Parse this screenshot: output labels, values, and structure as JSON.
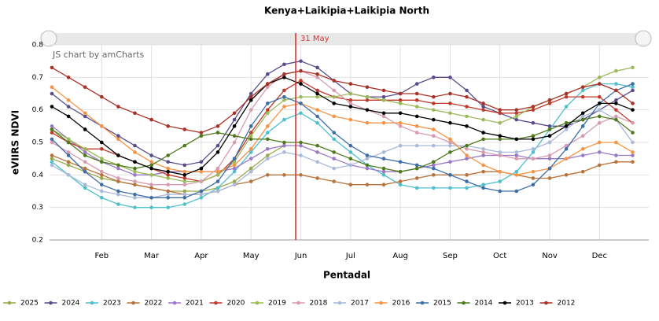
{
  "chart_data": {
    "type": "line",
    "title": "Kenya+Laikipia+Laikipia North",
    "credit": "JS chart by amCharts",
    "cursor_label": "31 May",
    "x_label": "Pentadal",
    "y_label": "eVIIRS NDVI",
    "categories": [
      null,
      null,
      null,
      "Feb",
      null,
      null,
      "Mar",
      null,
      null,
      "Apr",
      null,
      null,
      "May",
      null,
      null,
      "Jun",
      null,
      null,
      "Jul",
      null,
      null,
      "Aug",
      null,
      null,
      "Sep",
      null,
      null,
      "Oct",
      null,
      null,
      "Nov",
      null,
      null,
      "Dec",
      null,
      null
    ],
    "ylim": [
      0.2,
      0.8
    ],
    "yticks": [
      0.2,
      0.3,
      0.4,
      0.5,
      0.6,
      0.7,
      0.8
    ],
    "grid": true,
    "series": [
      {
        "name": "2025",
        "color": "#9aa84a",
        "values": [
          0.45,
          0.43,
          0.41,
          0.39,
          0.38,
          0.37,
          0.36,
          0.35,
          0.35,
          0.35,
          0.36,
          0.38,
          0.42,
          0.46,
          0.49,
          null,
          null,
          null,
          null,
          null,
          null,
          null,
          null,
          null,
          null,
          null,
          null,
          null,
          null,
          null,
          null,
          null,
          null,
          null,
          null,
          null
        ]
      },
      {
        "name": "2024",
        "color": "#5b4a8b",
        "values": [
          0.65,
          0.61,
          0.58,
          0.55,
          0.52,
          0.49,
          0.46,
          0.44,
          0.43,
          0.44,
          0.49,
          0.57,
          0.65,
          0.71,
          0.74,
          0.75,
          0.73,
          0.69,
          0.65,
          0.64,
          0.64,
          0.65,
          0.68,
          0.7,
          0.7,
          0.66,
          0.61,
          0.59,
          0.57,
          0.56,
          0.55,
          0.55,
          0.57,
          0.6,
          0.63,
          0.66
        ]
      },
      {
        "name": "2023",
        "color": "#4ec0cc",
        "values": [
          0.44,
          0.4,
          0.36,
          0.33,
          0.31,
          0.3,
          0.3,
          0.3,
          0.31,
          0.33,
          0.36,
          0.41,
          0.47,
          0.53,
          0.57,
          0.59,
          0.56,
          0.51,
          0.47,
          0.43,
          0.4,
          0.37,
          0.36,
          0.36,
          0.36,
          0.36,
          0.37,
          0.38,
          0.41,
          0.47,
          0.54,
          0.61,
          0.66,
          0.68,
          0.68,
          0.67
        ]
      },
      {
        "name": "2022",
        "color": "#b8733a",
        "values": [
          0.46,
          0.44,
          0.42,
          0.4,
          0.38,
          0.37,
          0.36,
          0.35,
          0.34,
          0.34,
          0.35,
          0.37,
          0.38,
          0.4,
          0.4,
          0.4,
          0.39,
          0.38,
          0.37,
          0.37,
          0.37,
          0.38,
          0.39,
          0.4,
          0.4,
          0.4,
          0.41,
          0.41,
          0.4,
          0.39,
          0.39,
          0.4,
          0.41,
          0.43,
          0.44,
          0.44
        ]
      },
      {
        "name": "2021",
        "color": "#9b79c6",
        "values": [
          0.55,
          0.51,
          0.47,
          0.44,
          0.42,
          0.4,
          0.4,
          0.41,
          0.41,
          0.41,
          0.41,
          0.42,
          0.45,
          0.48,
          0.49,
          0.49,
          0.47,
          0.45,
          0.43,
          0.42,
          0.41,
          0.41,
          0.42,
          0.43,
          0.44,
          0.45,
          0.46,
          0.46,
          0.46,
          0.45,
          0.45,
          0.45,
          0.46,
          0.47,
          0.46,
          0.46
        ]
      },
      {
        "name": "2020",
        "color": "#c0392b",
        "values": [
          0.53,
          0.5,
          0.48,
          0.48,
          0.46,
          0.44,
          0.42,
          0.4,
          0.39,
          0.38,
          0.4,
          0.45,
          0.53,
          0.6,
          0.66,
          0.69,
          0.66,
          0.64,
          0.63,
          0.63,
          0.63,
          0.63,
          0.63,
          0.62,
          0.62,
          0.61,
          0.6,
          0.59,
          0.59,
          0.6,
          0.62,
          0.64,
          0.64,
          0.64,
          0.6,
          0.56
        ]
      },
      {
        "name": "2019",
        "color": "#9bba59",
        "values": [
          0.54,
          0.51,
          0.48,
          0.45,
          0.43,
          0.41,
          0.4,
          0.39,
          0.38,
          0.38,
          0.4,
          0.44,
          0.52,
          0.59,
          0.63,
          0.64,
          0.64,
          0.64,
          0.65,
          0.64,
          0.63,
          0.62,
          0.61,
          0.6,
          0.59,
          0.58,
          0.57,
          0.56,
          0.58,
          0.61,
          0.63,
          0.65,
          0.67,
          0.7,
          0.72,
          0.73
        ]
      },
      {
        "name": "2018",
        "color": "#d79bb0",
        "values": [
          0.5,
          0.47,
          0.44,
          0.41,
          0.39,
          0.38,
          0.37,
          0.37,
          0.37,
          0.38,
          0.42,
          0.5,
          0.6,
          0.67,
          0.71,
          0.72,
          0.7,
          0.66,
          0.62,
          0.6,
          0.58,
          0.55,
          0.53,
          0.52,
          0.5,
          0.48,
          0.47,
          0.46,
          0.45,
          0.45,
          0.46,
          0.49,
          0.52,
          0.56,
          0.58,
          0.56
        ]
      },
      {
        "name": "2017",
        "color": "#a9b9d9",
        "values": [
          0.43,
          0.4,
          0.37,
          0.35,
          0.34,
          0.33,
          0.33,
          0.34,
          0.34,
          0.34,
          0.35,
          0.37,
          0.41,
          0.45,
          0.47,
          0.46,
          0.44,
          0.42,
          0.43,
          0.45,
          0.47,
          0.49,
          0.49,
          0.49,
          0.49,
          0.49,
          0.48,
          0.47,
          0.47,
          0.48,
          0.5,
          0.54,
          0.58,
          0.6,
          0.57,
          0.5
        ]
      },
      {
        "name": "2016",
        "color": "#f69446",
        "values": [
          0.67,
          0.63,
          0.59,
          0.55,
          0.51,
          0.47,
          0.44,
          0.42,
          0.41,
          0.41,
          0.41,
          0.43,
          0.48,
          0.55,
          0.61,
          0.62,
          0.6,
          0.58,
          0.57,
          0.56,
          0.56,
          0.56,
          0.55,
          0.54,
          0.51,
          0.46,
          0.43,
          0.41,
          0.4,
          0.41,
          0.42,
          0.45,
          0.48,
          0.5,
          0.5,
          0.47
        ]
      },
      {
        "name": "2015",
        "color": "#3e6ea8",
        "values": [
          0.51,
          0.46,
          0.41,
          0.37,
          0.35,
          0.34,
          0.33,
          0.33,
          0.33,
          0.35,
          0.38,
          0.45,
          0.55,
          0.62,
          0.64,
          0.62,
          0.58,
          0.53,
          0.49,
          0.46,
          0.45,
          0.44,
          0.43,
          0.42,
          0.4,
          0.38,
          0.36,
          0.35,
          0.35,
          0.37,
          0.42,
          0.48,
          0.55,
          0.62,
          0.66,
          0.68
        ]
      },
      {
        "name": "2014",
        "color": "#4f7a1c",
        "values": [
          0.54,
          0.5,
          0.46,
          0.44,
          0.43,
          0.42,
          0.43,
          0.46,
          0.49,
          0.52,
          0.53,
          0.52,
          0.51,
          0.51,
          0.5,
          0.5,
          0.49,
          0.47,
          0.45,
          0.43,
          0.42,
          0.41,
          0.42,
          0.44,
          0.47,
          0.49,
          0.51,
          0.51,
          0.51,
          0.52,
          0.54,
          0.56,
          0.57,
          0.58,
          0.57,
          0.53
        ]
      },
      {
        "name": "2013",
        "color": "#000000",
        "values": [
          0.61,
          0.58,
          0.54,
          0.5,
          0.46,
          0.44,
          0.42,
          0.41,
          0.4,
          0.42,
          0.47,
          0.55,
          0.63,
          0.68,
          0.7,
          0.68,
          0.65,
          0.62,
          0.61,
          0.6,
          0.59,
          0.59,
          0.58,
          0.57,
          0.56,
          0.55,
          0.53,
          0.52,
          0.51,
          0.51,
          0.52,
          0.55,
          0.59,
          0.62,
          0.62,
          0.6
        ]
      },
      {
        "name": "2012",
        "color": "#a93226",
        "values": [
          0.73,
          0.7,
          0.67,
          0.64,
          0.61,
          0.59,
          0.57,
          0.55,
          0.54,
          0.53,
          0.55,
          0.59,
          0.64,
          0.68,
          0.71,
          0.72,
          0.71,
          0.69,
          0.68,
          0.67,
          0.66,
          0.65,
          0.65,
          0.64,
          0.65,
          0.64,
          0.62,
          0.6,
          0.6,
          0.61,
          0.63,
          0.65,
          0.67,
          0.68,
          0.66,
          0.62
        ]
      }
    ]
  }
}
